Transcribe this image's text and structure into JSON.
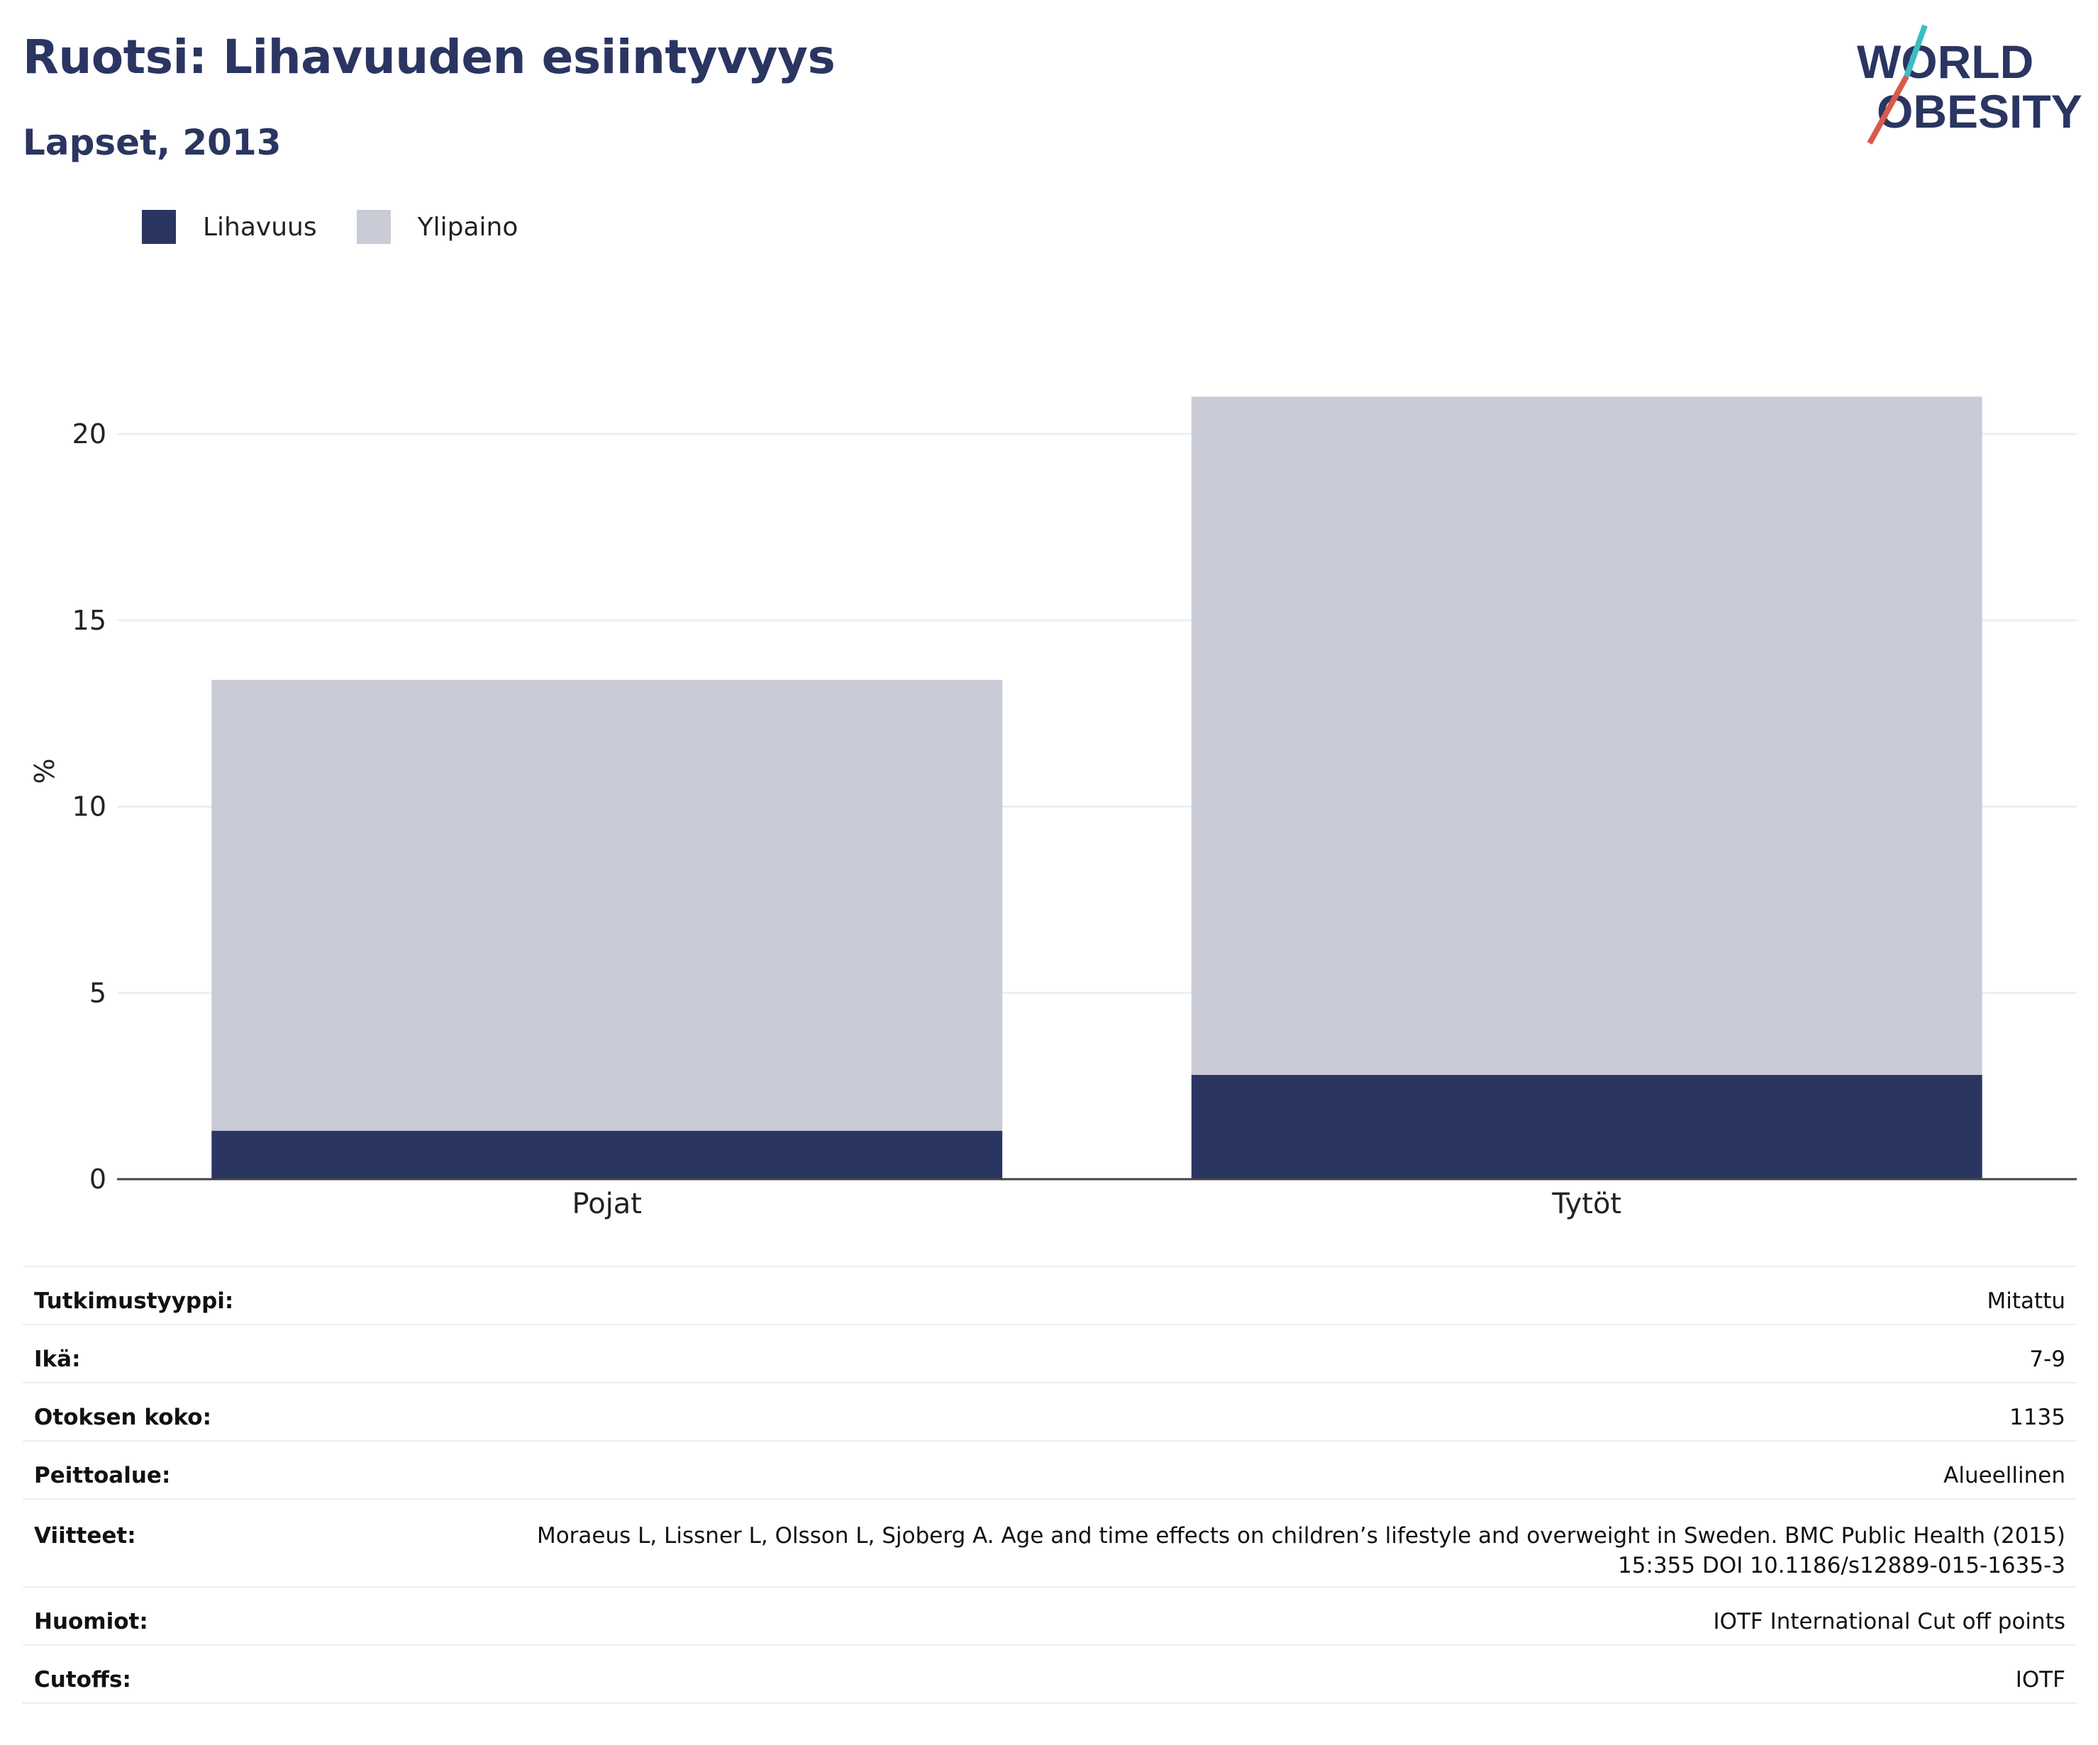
{
  "header": {
    "title": "Ruotsi: Lihavuuden esiintyvyys",
    "subtitle": "Lapset, 2013"
  },
  "logo": {
    "line1": "WORLD",
    "line2": "OBESITY",
    "accent": "#d85a4a",
    "accent2": "#3dbcc3"
  },
  "colors": {
    "obesity": "#2a3561",
    "overweight": "#c9cbd7"
  },
  "legend": [
    {
      "label": "Lihavuus",
      "color": "#2a3561"
    },
    {
      "label": "Ylipaino",
      "color": "#c9cbd7"
    }
  ],
  "chart_data": {
    "type": "bar",
    "stacked": true,
    "categories": [
      "Pojat",
      "Tytöt"
    ],
    "series": [
      {
        "name": "Lihavuus",
        "values": [
          1.3,
          2.8
        ]
      },
      {
        "name": "Ylipaino",
        "values": [
          12.1,
          18.2
        ]
      }
    ],
    "ylabel": "%",
    "ylim": [
      0,
      21
    ],
    "yticks": [
      0,
      5,
      10,
      15,
      20
    ],
    "grid": true,
    "legend_position": "top-left"
  },
  "info": [
    {
      "key": "Tutkimustyyppi:",
      "value": "Mitattu"
    },
    {
      "key": "Ikä:",
      "value": "7-9"
    },
    {
      "key": "Otoksen koko:",
      "value": "1135"
    },
    {
      "key": "Peittoalue:",
      "value": "Alueellinen"
    },
    {
      "key": "Viitteet:",
      "value": "Moraeus L, Lissner L, Olsson L, Sjoberg A. Age and time effects on children’s lifestyle and overweight in Sweden. BMC Public Health (2015) 15:355 DOI 10.1186/s12889-015-1635-3"
    },
    {
      "key": "Huomiot:",
      "value": "IOTF International Cut off points"
    },
    {
      "key": "Cutoffs:",
      "value": "IOTF"
    }
  ]
}
